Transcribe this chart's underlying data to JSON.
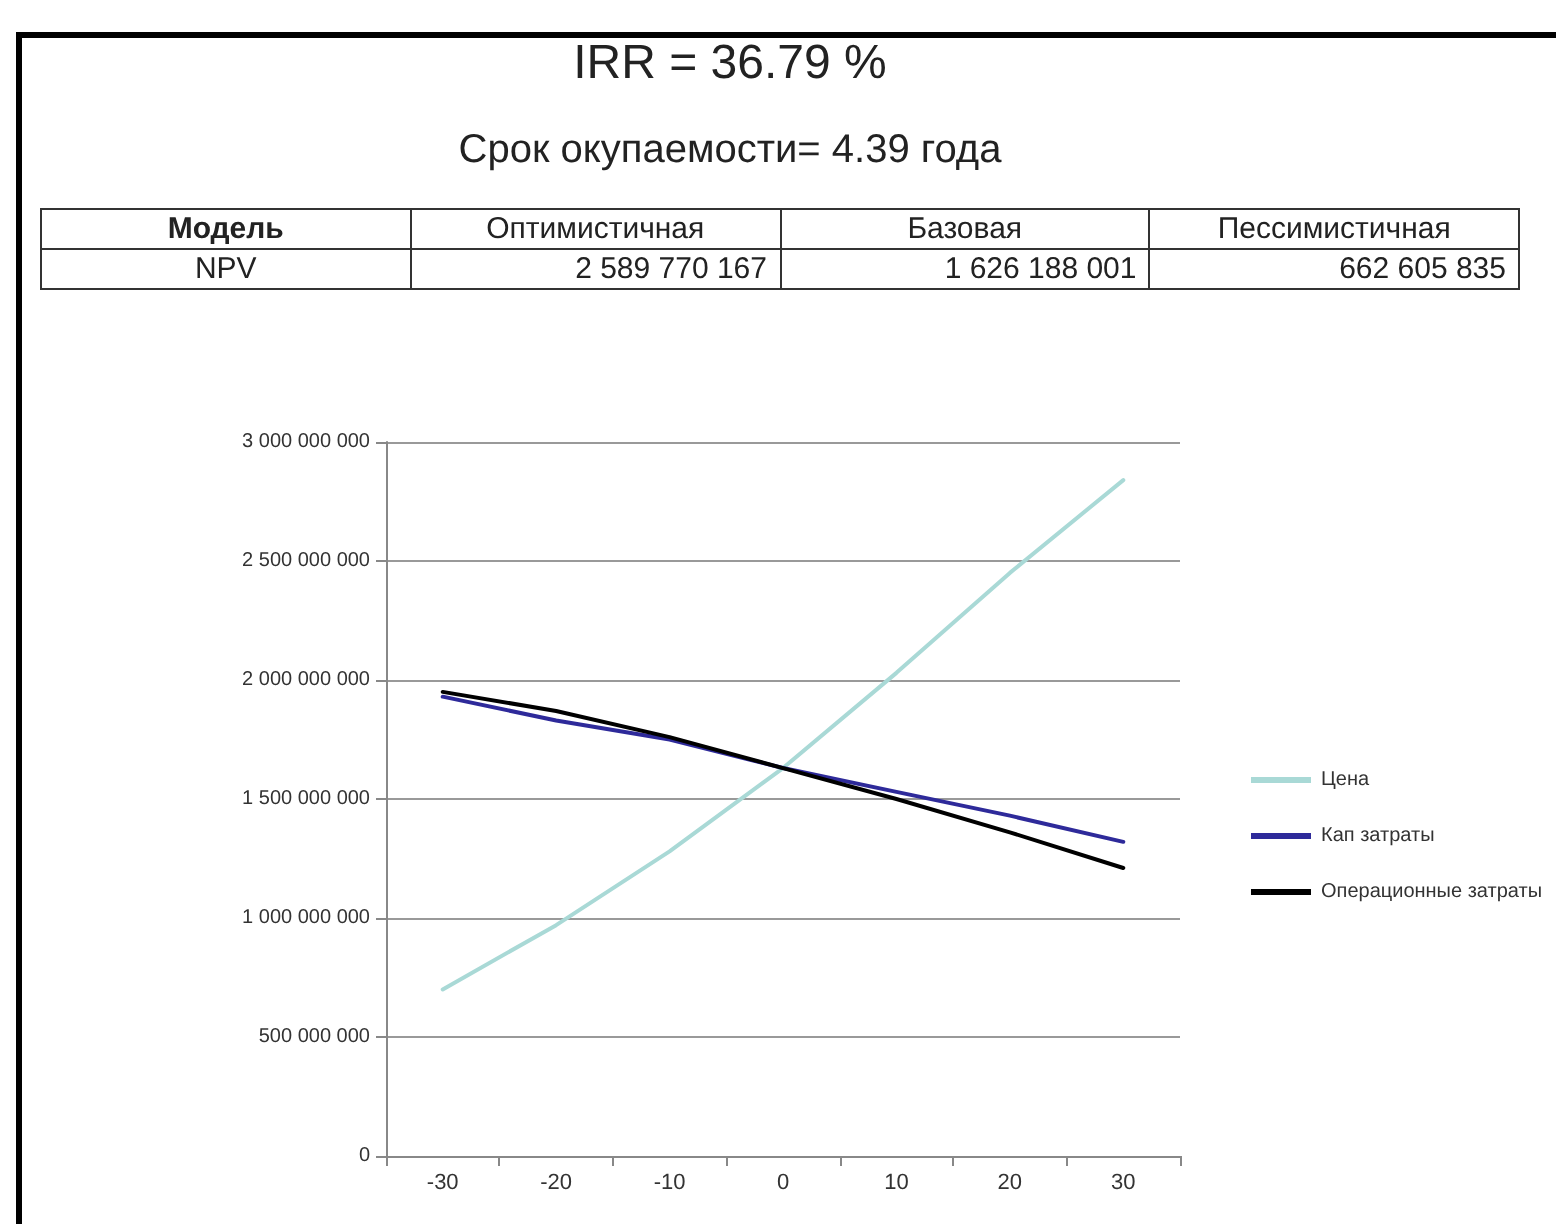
{
  "chart_data": {
    "type": "line",
    "title": "IRR = 36.79 %",
    "subtitle": "Срок окупаемости= 4.39 года",
    "annotations": [
      "Модель",
      "Оптимистичная",
      "Базовая",
      "Пессимистичная",
      "NPV",
      "2 589 770 167",
      "1 626 188 001",
      "662 605 835"
    ],
    "categories": [
      "-30",
      "-20",
      "-10",
      "0",
      "10",
      "20",
      "30"
    ],
    "series": [
      {
        "name": "Цена",
        "color": "#a9d9d6",
        "values": [
          700000000,
          970000000,
          1280000000,
          1630000000,
          2030000000,
          2450000000,
          2840000000
        ]
      },
      {
        "name": "Кап затраты",
        "color": "#2e2a9a",
        "values": [
          1930000000,
          1830000000,
          1750000000,
          1630000000,
          1530000000,
          1430000000,
          1320000000
        ]
      },
      {
        "name": "Операционные затраты",
        "color": "#000000",
        "values": [
          1950000000,
          1870000000,
          1760000000,
          1630000000,
          1500000000,
          1360000000,
          1210000000
        ]
      }
    ],
    "ylim": [
      0,
      3000000000
    ],
    "yticks": [
      {
        "value": 0,
        "label": "0"
      },
      {
        "value": 500000000,
        "label": "500 000 000"
      },
      {
        "value": 1000000000,
        "label": "1 000 000 000"
      },
      {
        "value": 1500000000,
        "label": "1 500 000 000"
      },
      {
        "value": 2000000000,
        "label": "2 000 000 000"
      },
      {
        "value": 2500000000,
        "label": "2 500 000 000"
      },
      {
        "value": 3000000000,
        "label": "3 000 000 000"
      }
    ],
    "grid": "y",
    "legend": "right",
    "marker": "none",
    "line_style": "solid"
  }
}
